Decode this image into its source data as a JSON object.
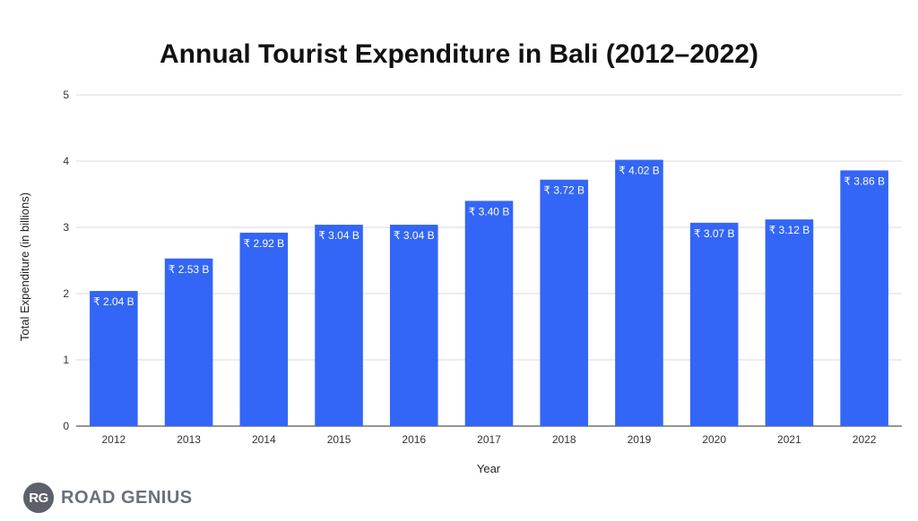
{
  "chart_data": {
    "type": "bar",
    "title": "Annual Tourist Expenditure in Bali (2012–2022)",
    "xlabel": "Year",
    "ylabel": "Total Expenditure (in billions)",
    "ylim": [
      0,
      5
    ],
    "yticks": [
      "0",
      "1",
      "2",
      "3",
      "4",
      "5"
    ],
    "grid": true,
    "legend": "none",
    "bar_color": "#3366f6",
    "categories": [
      "2012",
      "2013",
      "2014",
      "2015",
      "2016",
      "2017",
      "2018",
      "2019",
      "2020",
      "2021",
      "2022"
    ],
    "values": [
      2.04,
      2.53,
      2.92,
      3.04,
      3.04,
      3.4,
      3.72,
      4.02,
      3.07,
      3.12,
      3.86
    ],
    "data_labels": [
      "₹ 2.04 B",
      "₹ 2.53 B",
      "₹ 2.92 B",
      "₹ 3.04 B",
      "₹ 3.04 B",
      "₹ 3.40 B",
      "₹ 3.72 B",
      "₹ 4.02 B",
      "₹ 3.07 B",
      "₹ 3.12 B",
      "₹ 3.86 B"
    ]
  },
  "brand": {
    "badge": "RG",
    "name": "ROAD GENIUS"
  }
}
